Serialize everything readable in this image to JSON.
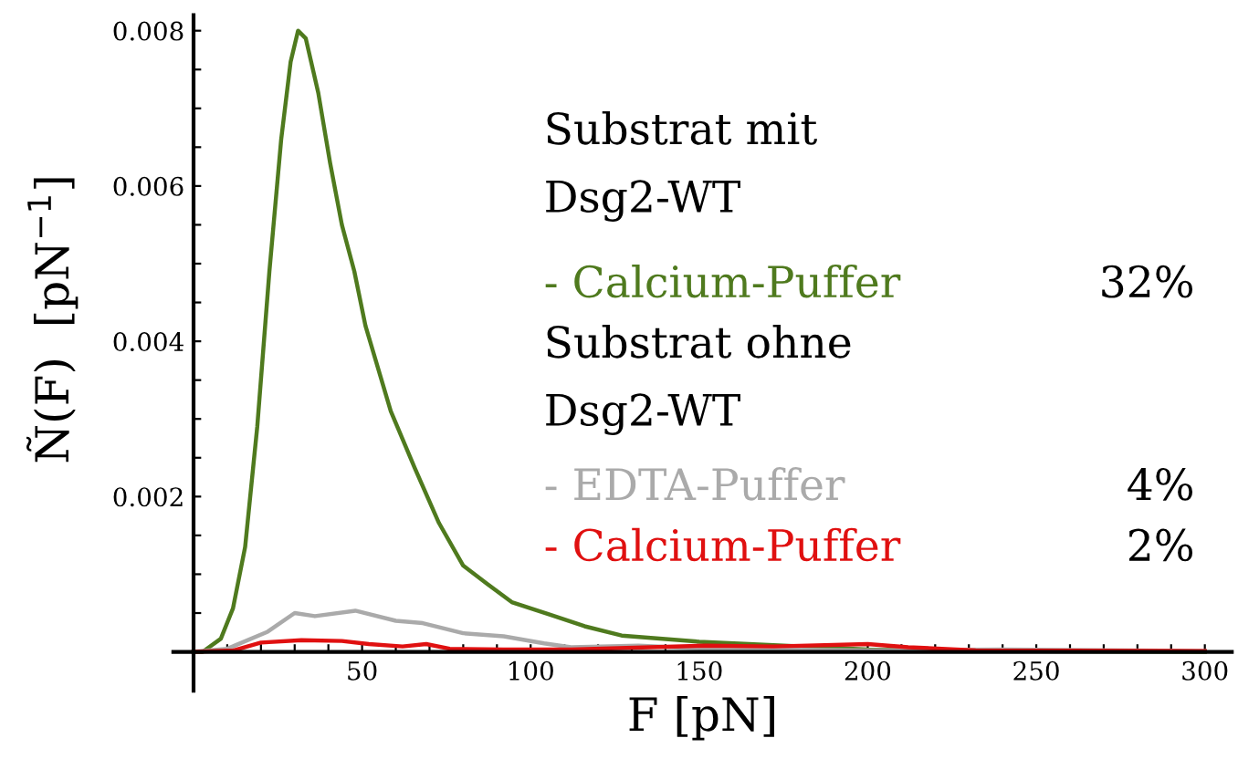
{
  "chart_data": {
    "type": "line",
    "xlabel": "F [pN]",
    "ylabel": "Ñ(F)  [pN$^{−1}$]",
    "xlim": [
      -6,
      308
    ],
    "ylim": [
      -0.0005,
      0.0082
    ],
    "xticks": [
      {
        "value": 10,
        "label": null
      },
      {
        "value": 20,
        "label": null
      },
      {
        "value": 30,
        "label": null
      },
      {
        "value": 40,
        "label": null
      },
      50,
      {
        "value": 60,
        "label": null
      },
      {
        "value": 70,
        "label": null
      },
      {
        "value": 80,
        "label": null
      },
      {
        "value": 90,
        "label": null
      },
      100,
      {
        "value": 110,
        "label": null
      },
      {
        "value": 120,
        "label": null
      },
      {
        "value": 130,
        "label": null
      },
      {
        "value": 140,
        "label": null
      },
      150,
      {
        "value": 160,
        "label": null
      },
      {
        "value": 170,
        "label": null
      },
      {
        "value": 180,
        "label": null
      },
      {
        "value": 190,
        "label": null
      },
      200,
      {
        "value": 210,
        "label": null
      },
      {
        "value": 220,
        "label": null
      },
      {
        "value": 230,
        "label": null
      },
      {
        "value": 240,
        "label": null
      },
      250,
      {
        "value": 260,
        "label": null
      },
      {
        "value": 270,
        "label": null
      },
      {
        "value": 280,
        "label": null
      },
      {
        "value": 290,
        "label": null
      },
      300
    ],
    "yticks": [
      {
        "value": 0.0005,
        "label": null
      },
      {
        "value": 0.001,
        "label": null
      },
      {
        "value": 0.0015,
        "label": null
      },
      0.002,
      {
        "value": 0.0025,
        "label": null
      },
      {
        "value": 0.003,
        "label": null
      },
      {
        "value": 0.0035,
        "label": null
      },
      0.004,
      {
        "value": 0.0045,
        "label": null
      },
      {
        "value": 0.005,
        "label": null
      },
      {
        "value": 0.0055,
        "label": null
      },
      0.006,
      {
        "value": 0.0065,
        "label": null
      },
      {
        "value": 0.007,
        "label": null
      },
      {
        "value": 0.0075,
        "label": null
      },
      0.008
    ],
    "grid": false,
    "legend": "right",
    "annotations": [
      "Substrat mit\nDsg2-WT",
      "32%",
      "Substrat ohne\nDsg2-WT",
      "4%",
      "2%"
    ],
    "series": [
      {
        "name": "- Calcium-Puffer",
        "color": "#4f7a1e",
        "x": [
          0,
          2.7,
          8.1,
          11.7,
          15.3,
          18.9,
          22.5,
          26,
          28.8,
          31,
          33.3,
          37,
          40.5,
          44,
          47.7,
          51,
          58.5,
          65.6,
          72.8,
          80,
          87,
          94.4,
          105,
          116,
          127,
          150,
          200,
          250,
          300
        ],
        "values": [
          0,
          0,
          0.00017,
          0.00056,
          0.00135,
          0.0029,
          0.0049,
          0.0066,
          0.0076,
          0.008,
          0.0079,
          0.0072,
          0.0063,
          0.0055,
          0.0049,
          0.0042,
          0.0031,
          0.00237,
          0.00166,
          0.00111,
          0.00088,
          0.00064,
          0.00049,
          0.00033,
          0.00021,
          0.00013,
          3e-05,
          1e-05,
          0
        ]
      },
      {
        "name": "- EDTA-Puffer",
        "color": "#aaaaaa",
        "x": [
          0,
          10,
          22,
          30,
          36,
          48,
          60,
          68,
          80,
          92,
          104,
          112,
          132,
          152,
          200,
          240,
          300
        ],
        "values": [
          0,
          4e-05,
          0.00026,
          0.0005,
          0.00046,
          0.00053,
          0.0004,
          0.00037,
          0.00024,
          0.0002,
          0.00011,
          6e-05,
          8e-05,
          4e-05,
          2e-05,
          3e-05,
          1e-05
        ]
      },
      {
        "name": "- Calcium-Puffer",
        "color": "#e01010",
        "x": [
          0,
          12,
          20,
          32,
          44,
          52,
          62,
          69,
          76,
          92,
          112,
          152,
          172,
          200,
          212,
          232,
          300
        ],
        "values": [
          0,
          2e-05,
          0.00012,
          0.00015,
          0.00014,
          0.0001,
          7e-05,
          0.0001,
          4e-05,
          3e-05,
          3e-05,
          8e-05,
          7e-05,
          0.0001,
          6e-05,
          2e-05,
          1e-05
        ]
      }
    ]
  }
}
